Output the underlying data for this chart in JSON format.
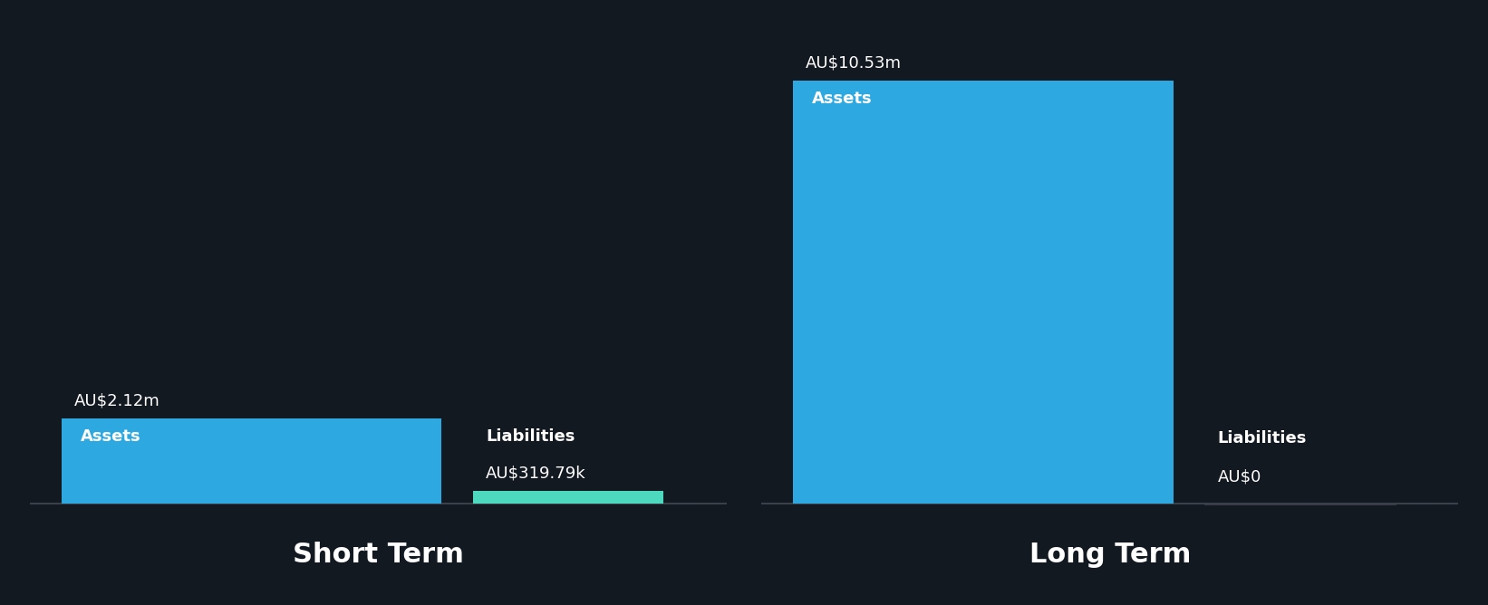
{
  "background_color": "#131921",
  "text_color": "#ffffff",
  "asset_color": "#2da8e0",
  "liability_color": "#4dd9c0",
  "groups": [
    {
      "label": "Short Term",
      "assets_value": 2.12,
      "liabilities_value": 0.31979,
      "assets_label": "AU$2.12m",
      "liabilities_label": "AU$319.79k",
      "bar_label_assets": "Assets",
      "bar_label_liabilities": "Liabilities"
    },
    {
      "label": "Long Term",
      "assets_value": 10.53,
      "liabilities_value": 0.0,
      "assets_label": "AU$10.53m",
      "liabilities_label": "AU$0",
      "bar_label_assets": "Assets",
      "bar_label_liabilities": "Liabilities"
    }
  ],
  "max_value": 10.53,
  "bar_text_fontsize": 13,
  "value_label_fontsize": 13,
  "group_label_fontsize": 22,
  "baseline_color": "#3a3f4a",
  "liab_line_color": "#3a3f4a"
}
